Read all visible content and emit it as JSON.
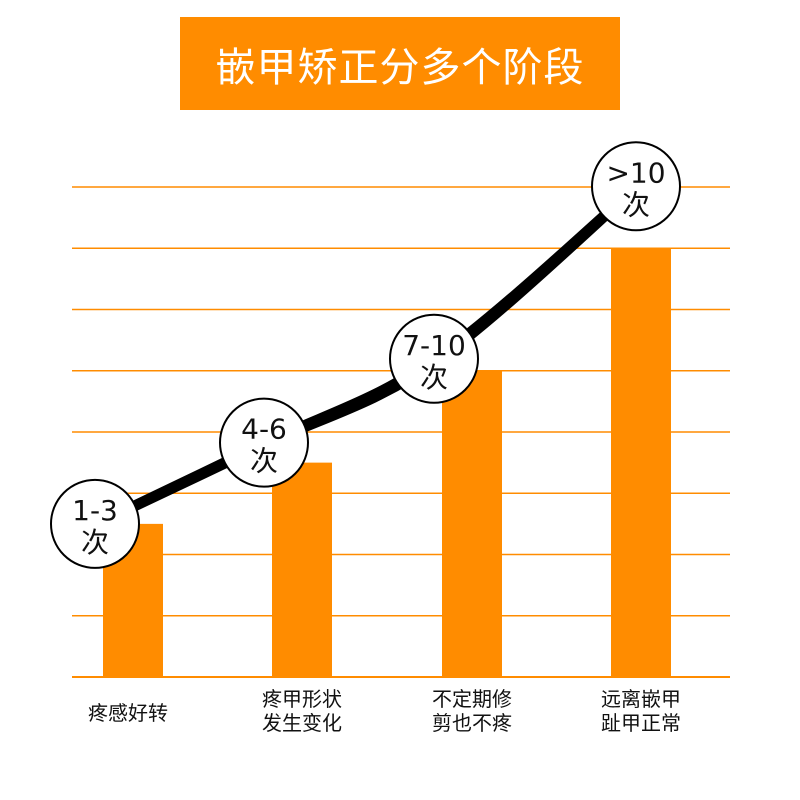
{
  "title": "嵌甲矫正分多个阶段",
  "colors": {
    "accent": "#ff8c00",
    "gridline": "#ff8c00",
    "curve": "#000000",
    "bubble_fill": "#ffffff",
    "bubble_stroke": "#000000",
    "title_text": "#ffffff"
  },
  "chart_data": {
    "type": "bar",
    "title": "嵌甲矫正分多个阶段",
    "categories": [
      [
        "疼感好转"
      ],
      [
        "疼甲形状",
        "发生变化"
      ],
      [
        "不定期修",
        "剪也不疼"
      ],
      [
        "远离嵌甲",
        "趾甲正常"
      ]
    ],
    "values": [
      2.5,
      3.5,
      5,
      7
    ],
    "ylim": [
      0,
      8
    ],
    "grid": true,
    "gridlines": [
      1,
      2,
      3,
      4,
      5,
      6,
      7,
      8
    ],
    "annotations": [
      [
        "1-3",
        "次"
      ],
      [
        "4-6",
        "次"
      ],
      [
        "7-10",
        "次"
      ],
      [
        ">10",
        "次"
      ]
    ],
    "trend_curve": true
  }
}
